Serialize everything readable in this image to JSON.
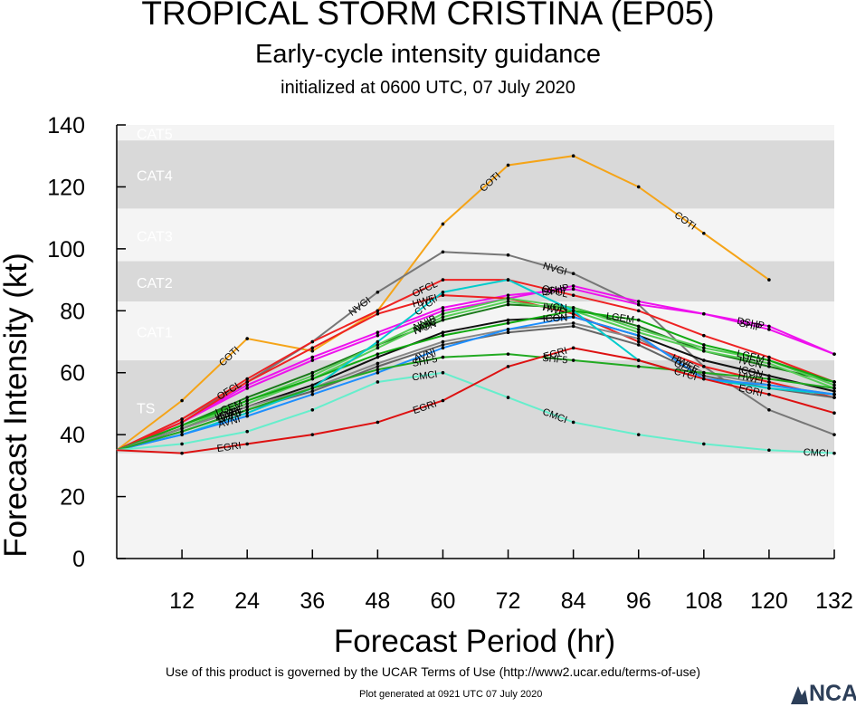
{
  "header": {
    "title": "TROPICAL STORM CRISTINA (EP05)",
    "subtitle": "Early-cycle intensity guidance",
    "initialized": "initialized at 0600 UTC, 07 July 2020"
  },
  "footer": {
    "terms": "Use of this product is governed by the UCAR Terms of Use (http://www2.ucar.edu/terms-of-use)",
    "generated": "Plot generated at 0921 UTC   07 July 2020",
    "logo_text": "NCAR"
  },
  "chart_data": {
    "type": "line",
    "title": "TROPICAL STORM CRISTINA (EP05)",
    "xlabel": "Forecast Period (hr)",
    "ylabel": "Forecast Intensity (kt)",
    "xlim": [
      0,
      132
    ],
    "ylim": [
      0,
      140
    ],
    "xticks": [
      12,
      24,
      36,
      48,
      60,
      72,
      84,
      96,
      108,
      120,
      132
    ],
    "yticks": [
      0,
      20,
      40,
      60,
      80,
      100,
      120,
      140
    ],
    "bands": [
      {
        "label": "TS",
        "min": 34,
        "max": 64,
        "shade": "dark"
      },
      {
        "label": "CAT1",
        "min": 64,
        "max": 83,
        "shade": "light"
      },
      {
        "label": "CAT2",
        "min": 83,
        "max": 96,
        "shade": "dark"
      },
      {
        "label": "CAT3",
        "min": 96,
        "max": 113,
        "shade": "light"
      },
      {
        "label": "CAT4",
        "min": 113,
        "max": 135,
        "shade": "dark"
      },
      {
        "label": "CAT5",
        "min": 135,
        "max": 140,
        "shade": "light"
      }
    ],
    "colors": {
      "dark_band": "#d9d9d9",
      "light_band": "#f4f4f4"
    },
    "x": [
      0,
      12,
      24,
      36,
      48,
      60,
      72,
      84,
      96,
      108,
      120,
      132
    ],
    "series": [
      {
        "name": "COTI",
        "color": "#f5a418",
        "values": [
          35,
          51,
          71,
          67,
          80,
          108,
          127,
          130,
          120,
          105,
          90,
          null
        ],
        "label_x": [
          24,
          72,
          108
        ]
      },
      {
        "name": "NVGI",
        "color": "#777777",
        "values": [
          35,
          45,
          57,
          70,
          86,
          99,
          98,
          92,
          82,
          62,
          48,
          40
        ],
        "label_x": [
          48,
          84
        ]
      },
      {
        "name": "DSHP",
        "color": "#ee11ee",
        "values": [
          35,
          44,
          55,
          64,
          72,
          80,
          84,
          88,
          83,
          79,
          75,
          66
        ],
        "label_x": [
          84,
          120
        ]
      },
      {
        "name": "SHIP",
        "color": "#ee11ee",
        "values": [
          35,
          44,
          56,
          65,
          73,
          81,
          85,
          87,
          82,
          79,
          74,
          66
        ],
        "label_x": [
          84,
          120
        ]
      },
      {
        "name": "OFCL",
        "color": "#ee2222",
        "values": [
          35,
          45,
          58,
          70,
          80,
          90,
          90,
          85,
          80,
          72,
          65,
          57
        ],
        "label_x": [
          24,
          60,
          84
        ]
      },
      {
        "name": "HWFI",
        "color": "#ee2222",
        "values": [
          35,
          44,
          57,
          68,
          79,
          85,
          84,
          79,
          70,
          62,
          57,
          52
        ],
        "label_x": [
          60,
          84,
          120
        ]
      },
      {
        "name": "IVCN",
        "color": "#1b7a1b",
        "values": [
          35,
          43,
          52,
          60,
          69,
          77,
          82,
          81,
          75,
          67,
          62,
          57
        ],
        "label_x": [
          60,
          84,
          120
        ]
      },
      {
        "name": "NNIC",
        "color": "#55cc55",
        "values": [
          35,
          42,
          50,
          58,
          68,
          78,
          83,
          80,
          73,
          67,
          63,
          55
        ],
        "label_x": [
          60
        ]
      },
      {
        "name": "NNIB",
        "color": "#55cc55",
        "values": [
          35,
          42,
          51,
          59,
          69,
          79,
          84,
          81,
          74,
          68,
          64,
          56
        ],
        "label_x": [
          60
        ]
      },
      {
        "name": "ICON",
        "color": "#111111",
        "values": [
          35,
          42,
          49,
          56,
          65,
          73,
          77,
          78,
          72,
          64,
          59,
          54
        ],
        "label_x": [
          24,
          84,
          120
        ]
      },
      {
        "name": "LGEM",
        "color": "#11aa11",
        "values": [
          35,
          43,
          51,
          58,
          66,
          72,
          76,
          80,
          77,
          69,
          64,
          57
        ],
        "label_x": [
          24,
          96,
          120
        ]
      },
      {
        "name": "HWFE",
        "color": "#888888",
        "values": [
          35,
          42,
          49,
          55,
          63,
          70,
          74,
          76,
          71,
          60,
          56,
          53
        ],
        "label_x": [
          24,
          108
        ]
      },
      {
        "name": "GFNI",
        "color": "#666666",
        "values": [
          35,
          41,
          48,
          54,
          62,
          69,
          73,
          75,
          69,
          59,
          55,
          52
        ],
        "label_x": [
          24,
          108
        ]
      },
      {
        "name": "CTCI",
        "color": "#00cccc",
        "values": [
          35,
          40,
          47,
          55,
          70,
          86,
          90,
          80,
          64,
          58,
          55,
          53
        ],
        "label_x": [
          60,
          108
        ]
      },
      {
        "name": "AVNI",
        "color": "#1e8fff",
        "values": [
          35,
          40,
          46,
          53,
          60,
          68,
          74,
          78,
          72,
          58,
          56,
          53
        ],
        "label_x": [
          24,
          60
        ]
      },
      {
        "name": "SHF5",
        "color": "#22aa22",
        "values": [
          35,
          41,
          48,
          55,
          61,
          65,
          66,
          64,
          62,
          60,
          58,
          55
        ],
        "label_x": [
          24,
          60,
          84
        ]
      },
      {
        "name": "CMCI",
        "color": "#66eecc",
        "values": [
          35,
          37,
          41,
          48,
          57,
          60,
          52,
          44,
          40,
          37,
          35,
          34
        ],
        "label_x": [
          60,
          84,
          132
        ]
      },
      {
        "name": "EGRI",
        "color": "#dd1111",
        "values": [
          35,
          34,
          37,
          40,
          44,
          51,
          62,
          68,
          64,
          58,
          53,
          47
        ],
        "label_x": [
          24,
          60,
          84,
          120
        ]
      }
    ]
  }
}
